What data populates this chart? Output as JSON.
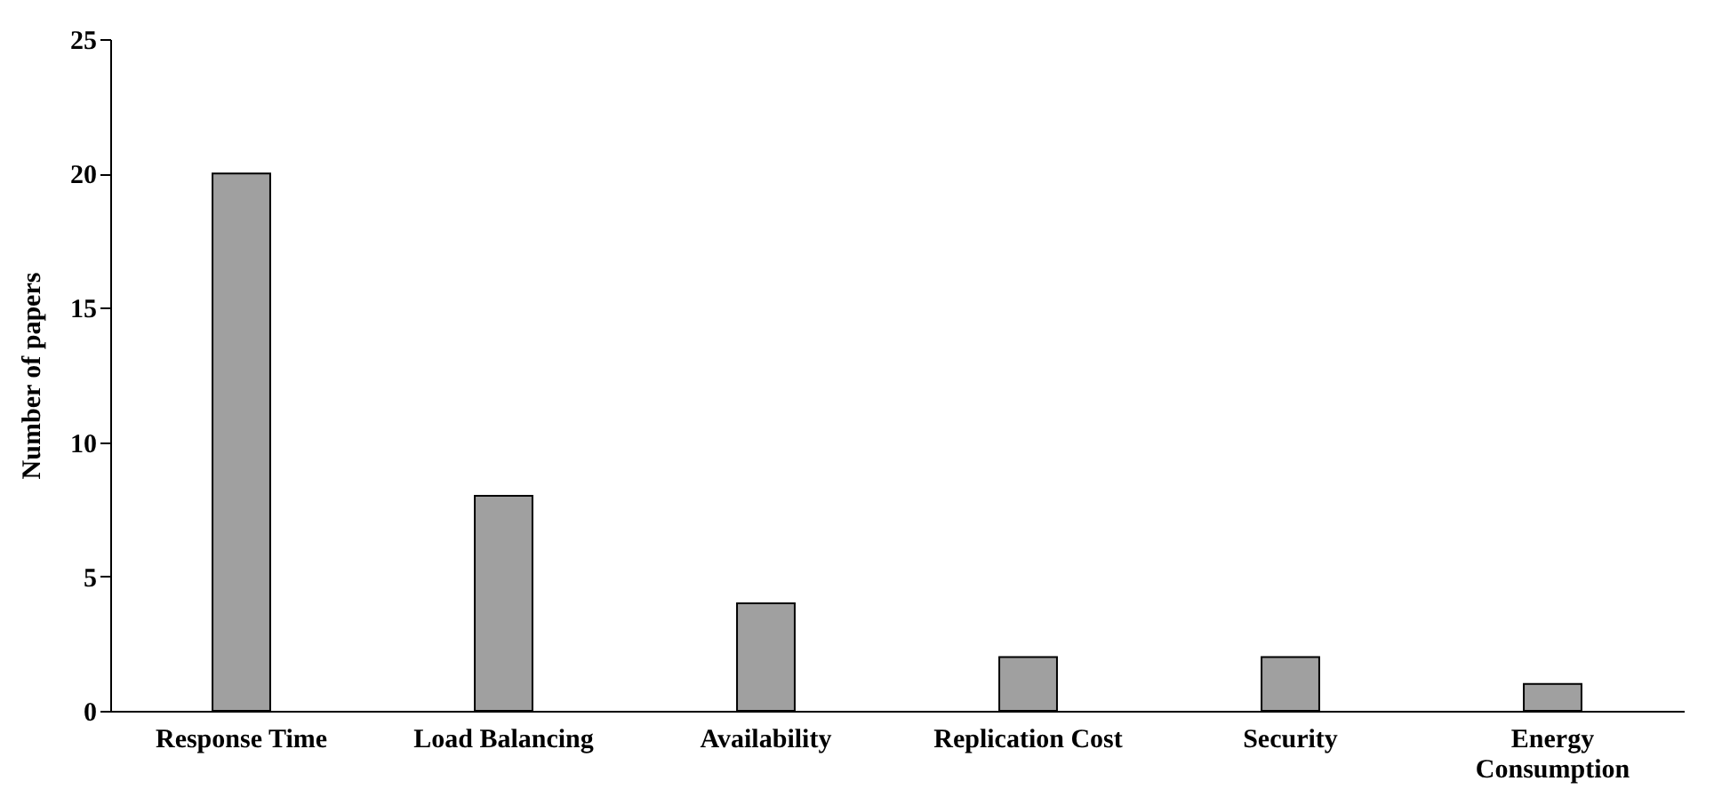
{
  "chart_data": {
    "type": "bar",
    "ylabel": "Number of papers",
    "categories": [
      "Response Time",
      "Load Balancing",
      "Availability",
      "Replication Cost",
      "Security",
      "Energy Consumption"
    ],
    "values": [
      20,
      8,
      4,
      2,
      2,
      1
    ],
    "color": "#a0a0a0",
    "ylim": [
      0,
      25
    ],
    "yticks": [
      0,
      5,
      10,
      15,
      20,
      25
    ],
    "grid": false
  }
}
